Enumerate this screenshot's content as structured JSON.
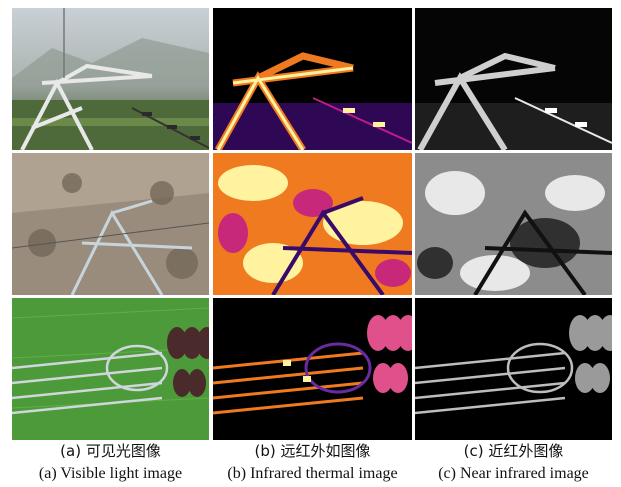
{
  "columns": [
    {
      "key": "visible",
      "caption_cn": "(a) 可见光图像",
      "caption_en": "(a) Visible light image"
    },
    {
      "key": "thermal",
      "caption_cn": "(b) 远红外如图像",
      "caption_en": "(b) Infrared thermal image"
    },
    {
      "key": "nir",
      "caption_cn": "(c) 近红外图像",
      "caption_en": "(c) Near infrared image"
    }
  ],
  "rows": [
    "tower-top",
    "tower-insulator",
    "line-fittings"
  ],
  "colors": {
    "thermal_hot": "#fff3a0",
    "thermal_warm": "#f07a20",
    "thermal_mid": "#c01a8a",
    "thermal_cool": "#3a0a6a",
    "nir_bright": "#e8e8e8",
    "nir_dark": "#050505"
  }
}
